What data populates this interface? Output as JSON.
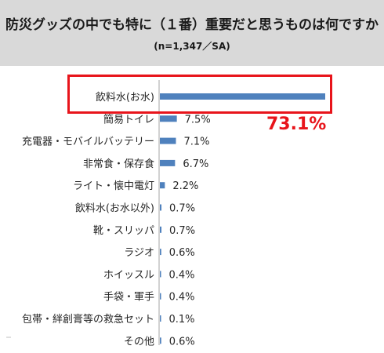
{
  "header": {
    "title": "防災グッズの中でも特に（１番）重要だと思うものは何ですか",
    "subtitle": "(n=1,347／SA)"
  },
  "callout": {
    "text": "73.1%",
    "color": "#e8141b"
  },
  "colors": {
    "bar": "#4f81bd",
    "highlight": "#e8141b"
  },
  "chart_data": {
    "type": "bar",
    "orientation": "horizontal",
    "categories": [
      "飲料水(お水)",
      "簡易トイレ",
      "充電器・モバイルバッテリー",
      "非常食・保存食",
      "ライト・懐中電灯",
      "飲料水(お水以外)",
      "靴・スリッパ",
      "ラジオ",
      "ホイッスル",
      "手袋・軍手",
      "包帯・絆創膏等の救急セット",
      "その他"
    ],
    "values": [
      73.1,
      7.5,
      7.1,
      6.7,
      2.2,
      0.7,
      0.7,
      0.6,
      0.4,
      0.4,
      0.1,
      0.6
    ],
    "value_labels": [
      "",
      "7.5%",
      "7.1%",
      "6.7%",
      "2.2%",
      "0.7%",
      "0.7%",
      "0.6%",
      "0.4%",
      "0.4%",
      "0.1%",
      "0.6%"
    ],
    "xlim": [
      0,
      73.1
    ],
    "highlight_index": 0
  }
}
